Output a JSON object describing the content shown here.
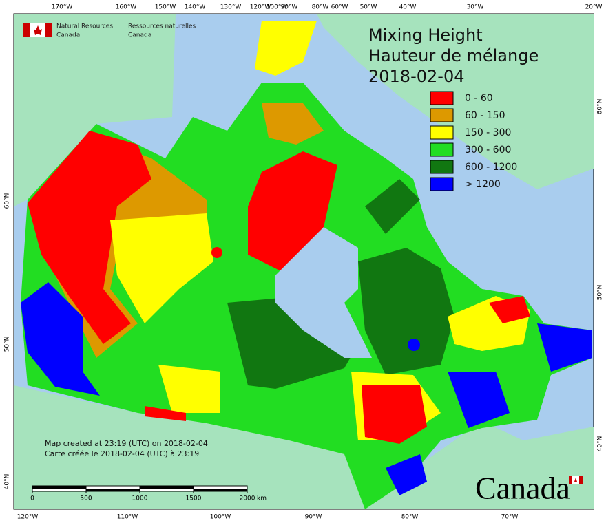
{
  "header": {
    "org_en": [
      "Natural Resources",
      "Canada"
    ],
    "org_fr": [
      "Ressources naturelles",
      "Canada"
    ]
  },
  "title": {
    "en": "Mixing Height",
    "fr": "Hauteur de mélange",
    "date": "2018-02-04"
  },
  "legend": [
    {
      "label": "0 - 60",
      "color": "#ff0000"
    },
    {
      "label": "60 - 150",
      "color": "#dd9900"
    },
    {
      "label": "150 - 300",
      "color": "#ffff00"
    },
    {
      "label": "300 - 600",
      "color": "#22dd22"
    },
    {
      "label": "600 - 1200",
      "color": "#117711"
    },
    {
      "label": "> 1200",
      "color": "#0000ff"
    }
  ],
  "graticule": {
    "top": [
      "170°W",
      "160°W",
      "150°W",
      "140°W",
      "130°W",
      "120°W",
      "100°W",
      "90°W",
      "80°W",
      "60°W",
      "50°W",
      "40°W",
      "30°W",
      "20°W"
    ],
    "bottom": [
      "120°W",
      "110°W",
      "100°W",
      "90°W",
      "80°W",
      "70°W"
    ],
    "left": [
      "60°N",
      "50°N",
      "40°N"
    ],
    "right": [
      "60°N",
      "50°N",
      "40°N"
    ]
  },
  "footer": {
    "created_en": "Map created at 23:19 (UTC) on 2018-02-04",
    "created_fr": "Carte créée le 2018-02-04 (UTC) à 23:19"
  },
  "scale": {
    "ticks": [
      0,
      500,
      1000,
      1500,
      2000
    ],
    "unit": "km"
  },
  "wordmark": "Canada"
}
